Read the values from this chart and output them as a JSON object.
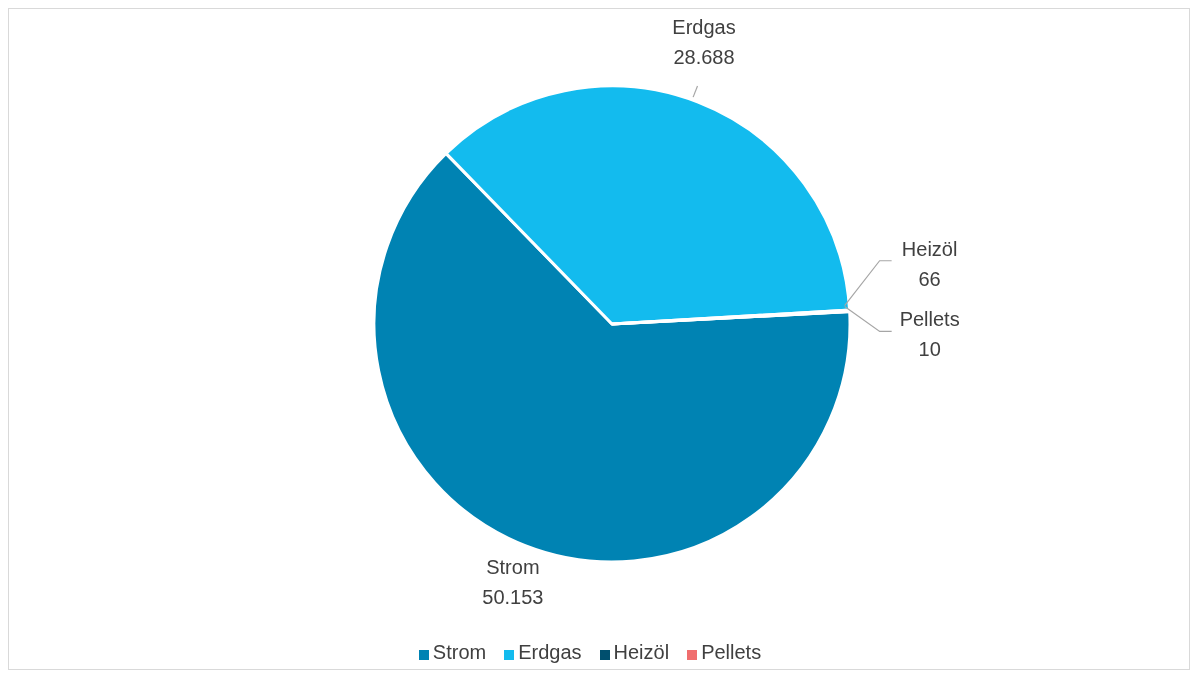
{
  "chart_data": {
    "type": "pie",
    "categories": [
      "Strom",
      "Erdgas",
      "Heizöl",
      "Pellets"
    ],
    "values": [
      50153,
      28688,
      66,
      10
    ],
    "value_labels": [
      "50.153",
      "28.688",
      "66",
      "10"
    ],
    "colors": [
      "#0083b3",
      "#13bbee",
      "#004f6e",
      "#f06e6e"
    ],
    "legend": "bottom"
  }
}
